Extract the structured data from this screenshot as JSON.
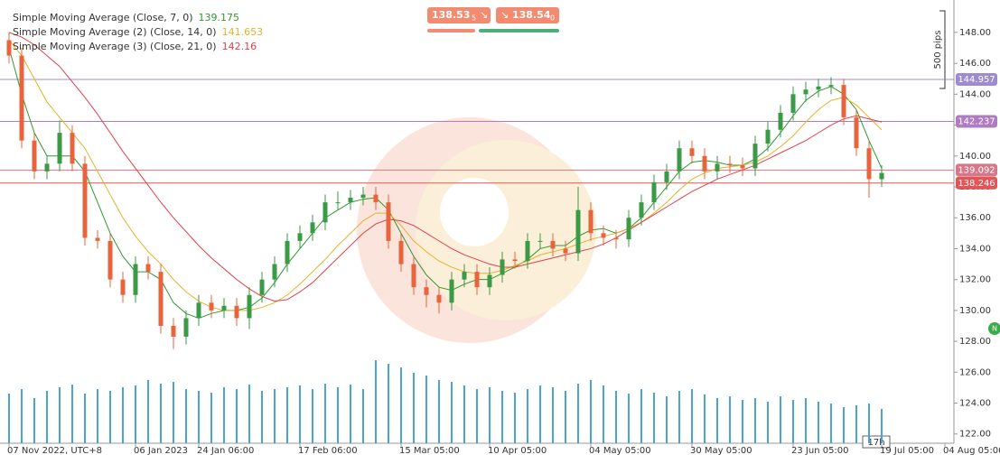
{
  "chart_data": {
    "type": "candlestick",
    "legend": [
      {
        "name": "Simple Moving Average (Close, 7, 0)",
        "last": 139.175
      },
      {
        "name": "Simple Moving Average (2) (Close, 14, 0)",
        "last": 141.653
      },
      {
        "name": "Simple Moving Average (3) (Close, 21, 0)",
        "last": 142.16
      }
    ],
    "sell_price": "138.53",
    "sell_pip": "5",
    "buy_price": "138.54",
    "buy_pip": "0",
    "range_label": "500 pips",
    "countdown": "17h",
    "badge": "N",
    "categories": [
      "07 Nov 2022, UTC+8",
      null,
      null,
      null,
      null,
      null,
      null,
      null,
      null,
      null,
      "06 Jan 2023",
      null,
      null,
      null,
      null,
      "24 Jan 06:00",
      null,
      null,
      null,
      null,
      null,
      null,
      null,
      "17 Feb 06:00",
      null,
      null,
      null,
      null,
      null,
      null,
      null,
      "15 Mar 05:00",
      null,
      null,
      null,
      null,
      null,
      null,
      "10 Apr 05:00",
      null,
      null,
      null,
      null,
      null,
      null,
      null,
      "04 May 05:00",
      null,
      null,
      null,
      null,
      null,
      null,
      null,
      "30 May 05:00",
      null,
      null,
      null,
      null,
      null,
      null,
      null,
      "23 Jun 05:00",
      null,
      null,
      null,
      null,
      null,
      null,
      "19 Jul 05:00",
      null,
      null,
      null,
      null,
      "04 Aug 05:00"
    ],
    "open": [
      147.5,
      146.5,
      141,
      139,
      139.5,
      141.5,
      139.5,
      134.7,
      134.5,
      132,
      131,
      133,
      132.5,
      129,
      128.3,
      129.5,
      130.5,
      130,
      130.3,
      129.5,
      131,
      132,
      133,
      134.5,
      135,
      135.7,
      137,
      137,
      137.3,
      137.5,
      137,
      134.5,
      133,
      131.5,
      131,
      130.5,
      132,
      132.5,
      131.5,
      132.3,
      133.3,
      133.2,
      134.5,
      134.5,
      134,
      133.7,
      136.5,
      135,
      134.7,
      134.6,
      136,
      137,
      138.3,
      139,
      140.5,
      140,
      139,
      139.5,
      139.4,
      139.2,
      140.8,
      141.7,
      142.8,
      144,
      144.3,
      144.5,
      144.6,
      142.5,
      140.5,
      138.5,
      null,
      null,
      null,
      null,
      null
    ],
    "high": [
      148,
      147,
      141.5,
      140,
      142.3,
      142,
      140,
      135.2,
      135,
      132.5,
      133.5,
      133.5,
      133,
      129.5,
      130,
      131,
      131,
      130.8,
      130.8,
      131.5,
      132.5,
      133.5,
      135,
      135.5,
      136.2,
      137.5,
      137.7,
      137.8,
      138,
      138,
      137.5,
      135,
      133.5,
      132,
      131.5,
      132.5,
      133,
      133,
      132.8,
      133.8,
      133.8,
      135,
      135,
      135,
      134.5,
      138,
      137,
      135.5,
      135.2,
      136.5,
      137.5,
      138.8,
      139.5,
      141,
      141,
      140.5,
      140,
      140,
      139.9,
      141.3,
      142.2,
      143.3,
      144.5,
      144.8,
      145,
      145.1,
      145,
      143,
      141,
      139.4,
      null,
      null,
      null,
      null,
      null
    ],
    "low": [
      146,
      140.5,
      138.5,
      138.5,
      139,
      139,
      134.2,
      134,
      131.5,
      130.5,
      130.5,
      132,
      128.5,
      127.5,
      127.8,
      129,
      129.5,
      129.5,
      129,
      128.8,
      130.5,
      131.5,
      132.5,
      134,
      134.5,
      135.2,
      136.5,
      136.5,
      136.8,
      136.5,
      134,
      132.5,
      131,
      130.2,
      129.8,
      130,
      131.5,
      131,
      131,
      131.8,
      132.7,
      132.7,
      134,
      133.5,
      133.2,
      133.2,
      134.5,
      134.2,
      134,
      134.1,
      135.5,
      136.5,
      137.8,
      138.5,
      139.5,
      138.5,
      138.5,
      138.9,
      138.7,
      138.7,
      140.3,
      141.2,
      142.3,
      143.5,
      143.8,
      144,
      142,
      140,
      137.3,
      138,
      null,
      null,
      null,
      null,
      null
    ],
    "close": [
      146.5,
      141,
      139,
      139.5,
      141.5,
      139.5,
      134.7,
      134.5,
      132,
      131,
      133,
      132.5,
      129,
      128.3,
      129.5,
      130.5,
      130,
      130.3,
      129.5,
      131,
      132,
      133,
      134.5,
      135,
      135.7,
      137,
      137,
      137.3,
      137.5,
      137,
      134.5,
      133,
      131.5,
      131,
      130.5,
      132,
      132.5,
      131.5,
      132.3,
      133.3,
      133.2,
      134.5,
      134.5,
      134,
      133.7,
      136.5,
      135,
      134.7,
      134.6,
      136,
      137,
      138.3,
      139,
      140.5,
      140,
      139,
      139.5,
      139.4,
      139.2,
      140.8,
      141.7,
      142.8,
      144,
      144.3,
      144.5,
      144.6,
      142.5,
      140.5,
      138.5,
      138.9,
      null,
      null,
      null,
      null,
      null
    ],
    "volume": [
      55,
      60,
      50,
      58,
      62,
      65,
      55,
      60,
      58,
      62,
      64,
      70,
      66,
      68,
      60,
      58,
      56,
      62,
      60,
      65,
      58,
      60,
      62,
      64,
      60,
      66,
      62,
      65,
      60,
      92,
      88,
      84,
      78,
      75,
      70,
      68,
      64,
      60,
      62,
      58,
      56,
      60,
      64,
      62,
      58,
      66,
      70,
      64,
      58,
      55,
      60,
      56,
      52,
      58,
      60,
      54,
      50,
      52,
      48,
      50,
      46,
      52,
      48,
      50,
      46,
      44,
      40,
      42,
      44,
      38,
      null,
      null,
      null,
      null,
      null
    ],
    "up_color": "#3a9a45",
    "down_color": "#e8643c",
    "volume_color": "#4aa3d6",
    "series": [
      {
        "name": "SMA 7",
        "color": "#2e9a2e",
        "values": [
          147,
          144,
          141.5,
          140,
          140,
          140,
          139,
          137,
          135,
          133.5,
          132.5,
          132.5,
          132,
          130.5,
          129.8,
          129.5,
          129.8,
          130,
          130,
          130.2,
          130.8,
          131.8,
          133,
          134,
          135,
          136,
          136.5,
          137,
          137.2,
          137.3,
          136.5,
          135,
          133.5,
          132.3,
          131.5,
          131.3,
          131.7,
          132,
          132,
          132.4,
          132.8,
          133.3,
          134,
          134.2,
          134.2,
          134.8,
          135.2,
          135.3,
          135,
          135.3,
          136,
          137,
          138,
          139,
          139.6,
          139.7,
          139.6,
          139.4,
          139.4,
          139.8,
          140.5,
          141.5,
          142.6,
          143.6,
          144.2,
          144.5,
          144,
          143,
          141,
          139.2,
          null,
          null,
          null,
          null,
          null
        ]
      },
      {
        "name": "SMA 14",
        "color": "#e3b32a",
        "values": [
          147.5,
          146.5,
          145,
          143.5,
          142.5,
          141.5,
          140.5,
          139,
          137.5,
          136,
          134.8,
          133.8,
          133,
          132,
          131.2,
          130.6,
          130.2,
          130,
          130,
          130,
          130.2,
          130.5,
          131,
          131.7,
          132.5,
          133.3,
          134.2,
          135,
          135.8,
          136.3,
          136.3,
          135.5,
          134.5,
          133.8,
          133.2,
          132.8,
          132.5,
          132.4,
          132.4,
          132.6,
          132.9,
          133.2,
          133.6,
          133.8,
          134,
          134.3,
          134.6,
          134.8,
          135,
          135.3,
          135.7,
          136.3,
          137,
          137.8,
          138.5,
          138.9,
          139.2,
          139.3,
          139.4,
          139.6,
          140,
          140.6,
          141.3,
          142.2,
          143,
          143.6,
          143.8,
          143.3,
          142.5,
          141.7,
          null,
          null,
          null,
          null,
          null
        ]
      },
      {
        "name": "SMA 21",
        "color": "#e0404a",
        "values": [
          148,
          147.7,
          147.2,
          146.5,
          145.8,
          144.8,
          143.8,
          142.7,
          141.5,
          140.3,
          139.2,
          138.1,
          137,
          136,
          135.1,
          134.2,
          133.4,
          132.7,
          132,
          131.4,
          130.9,
          130.6,
          130.7,
          131.2,
          131.8,
          132.6,
          133.4,
          134.2,
          135,
          135.6,
          135.9,
          135.8,
          135.5,
          135,
          134.5,
          134,
          133.6,
          133.3,
          133,
          132.8,
          132.8,
          133,
          133.2,
          133.4,
          133.6,
          133.8,
          134,
          134.3,
          134.7,
          135.2,
          135.7,
          136.2,
          136.7,
          137.2,
          137.7,
          138.1,
          138.5,
          138.8,
          139.1,
          139.4,
          139.8,
          140.2,
          140.6,
          141,
          141.5,
          142,
          142.4,
          142.6,
          142.4,
          142.2,
          null,
          null,
          null,
          null,
          null
        ]
      }
    ],
    "levels": [
      144.957,
      142.237,
      139.092,
      138.246
    ],
    "level_colors": [
      "#9b8cd0",
      "#b07cc0",
      "#d6788a",
      "#e05555"
    ],
    "ylim": [
      121.4,
      150.1
    ],
    "yticks": [
      {
        "value": 122,
        "label": "122.00"
      },
      {
        "value": 124,
        "label": "124.00"
      },
      {
        "value": 126,
        "label": "126.00"
      },
      {
        "value": 128,
        "label": "128.00"
      },
      {
        "value": 130,
        "label": "130.00"
      },
      {
        "value": 132,
        "label": "132.00"
      },
      {
        "value": 134,
        "label": "134.00"
      },
      {
        "value": 136,
        "label": "136.00"
      },
      {
        "value": 138,
        "label": "138.00"
      },
      {
        "value": 140,
        "label": "140.00"
      },
      {
        "value": 142,
        "label": "142.00"
      },
      {
        "value": 144,
        "label": "144.00"
      },
      {
        "value": 146,
        "label": "146.00"
      },
      {
        "value": 148,
        "label": "148.00"
      }
    ]
  }
}
